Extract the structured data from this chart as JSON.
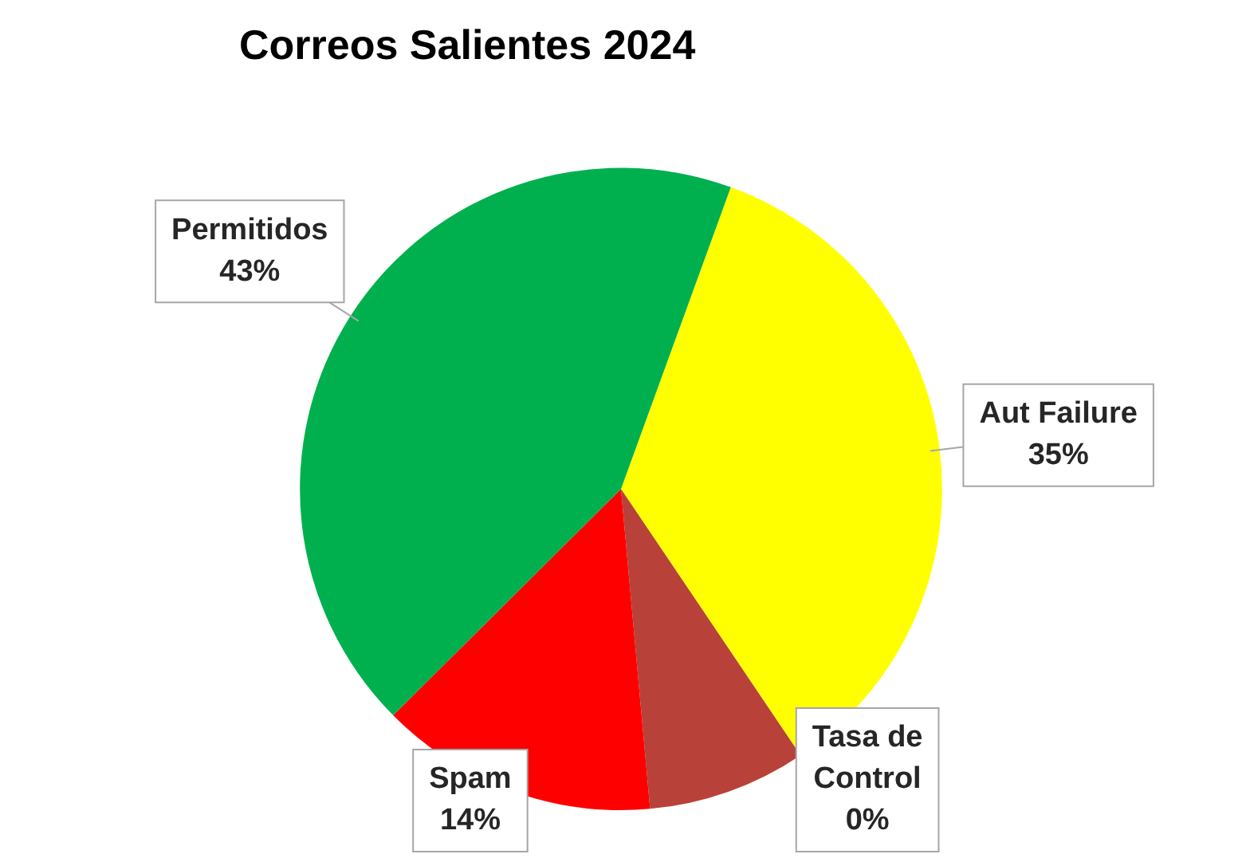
{
  "chart_data": {
    "type": "pie",
    "title": "Correos Salientes 2024",
    "categories": [
      "Aut Failure",
      "Tasa de Control",
      null,
      "Spam",
      "Permitidos"
    ],
    "values": [
      35,
      0,
      8,
      14,
      43
    ],
    "colors": [
      "#ffff00",
      "#7f1d1d",
      "#b8413a",
      "#ff0000",
      "#00b04f"
    ],
    "value_labels": [
      "35%",
      "0%",
      null,
      "14%",
      "43%"
    ],
    "legend": false
  }
}
